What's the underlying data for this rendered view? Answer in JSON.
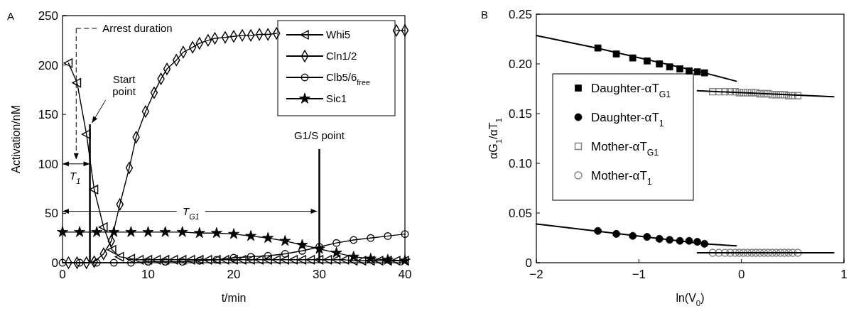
{
  "chart_data": [
    {
      "type": "line",
      "xlabel": "t/min",
      "ylabel": "Activation/nM",
      "xlim": [
        0,
        40
      ],
      "ylim": [
        0,
        250
      ],
      "xticks": [
        0,
        10,
        20,
        30,
        40
      ],
      "yticks": [
        0,
        50,
        100,
        150,
        200,
        250
      ],
      "legend": "top right",
      "annotations": [
        "A",
        "Arrest duration",
        "T$_{1}$",
        "T$_{G1}$"
      ],
      "ref_lines": [
        {
          "axis": "x",
          "value": 3.2,
          "label": "Start point",
          "color": "#000000"
        },
        {
          "axis": "x",
          "value": 30,
          "label": "G1/S point",
          "color": "#000000"
        }
      ],
      "series": [
        {
          "name": "Whi5",
          "color": "#000000",
          "marker": "triangle",
          "x": [
            0.7,
            1.7,
            2.8,
            3.7,
            4.8,
            5.8,
            6.7,
            8,
            9,
            10,
            11,
            12,
            13,
            14,
            15,
            16,
            17,
            18,
            19,
            20,
            21,
            22,
            23,
            24,
            25,
            26,
            27,
            28,
            29,
            30,
            31,
            32,
            33,
            34,
            35,
            36,
            37,
            38,
            39,
            40
          ],
          "values": [
            202,
            182,
            130,
            74,
            36,
            13,
            6,
            4,
            3,
            3,
            3,
            3,
            3,
            3,
            3,
            3,
            3,
            3,
            3,
            3,
            3,
            3,
            3,
            3,
            3,
            3,
            3,
            3,
            3,
            3,
            3,
            3,
            3,
            2,
            2,
            2,
            2,
            2,
            2,
            2
          ]
        },
        {
          "name": "Cln1/2",
          "color": "#000000",
          "marker": "diamond",
          "x": [
            0.7,
            1.7,
            2.8,
            3.7,
            4.8,
            5.7,
            6.7,
            7.8,
            8.6,
            9.7,
            10.7,
            11.5,
            12.2,
            13.3,
            14.1,
            15.2,
            16,
            17,
            17.8,
            19,
            20,
            21,
            22,
            23,
            24,
            25,
            26,
            27,
            28,
            29,
            30,
            31,
            32,
            33,
            34,
            35,
            36,
            37,
            38,
            39,
            40
          ],
          "values": [
            0,
            0,
            0,
            1,
            9,
            22,
            59,
            96,
            127,
            153,
            172,
            186,
            196,
            205,
            213,
            218,
            222,
            225,
            227,
            228,
            229,
            230,
            230,
            231,
            231,
            232,
            null,
            null,
            null,
            null,
            null,
            null,
            null,
            null,
            null,
            null,
            null,
            null,
            null,
            235,
            235
          ]
        },
        {
          "name": "Clb5/6$_{free}$",
          "color": "#000000",
          "marker": "circle",
          "x": [
            0,
            2,
            4,
            6,
            8,
            10,
            12,
            14,
            16,
            18,
            20,
            22,
            24,
            26,
            28,
            30,
            32,
            34,
            36,
            38,
            40
          ],
          "values": [
            0,
            0,
            0,
            0,
            0,
            1,
            1,
            1,
            2,
            3,
            5,
            6,
            7,
            9,
            12,
            16,
            20,
            23,
            25,
            27,
            29
          ]
        },
        {
          "name": "Sic1",
          "color": "#000000",
          "marker": "star",
          "x": [
            0,
            2,
            4,
            6,
            8,
            10,
            12,
            14,
            16,
            18,
            20,
            22,
            24,
            26,
            28,
            30,
            32,
            34,
            36,
            38,
            40
          ],
          "values": [
            31,
            31,
            31,
            31,
            31,
            31,
            31,
            31,
            30,
            30,
            29,
            27,
            25,
            22,
            18,
            14,
            10,
            6,
            4,
            3,
            2
          ]
        }
      ]
    },
    {
      "type": "scatter",
      "xlabel": "ln(V$_{0}$)",
      "ylabel": "αG$_{1}$/αT$_{1}$",
      "xlim": [
        -2,
        1
      ],
      "ylim": [
        0,
        0.25
      ],
      "xticks": [
        {
          "value": -2,
          "label": "−2"
        },
        {
          "value": -1,
          "label": "−1"
        },
        0,
        1
      ],
      "yticks": [
        0,
        0.05,
        {
          "value": 0.1,
          "label": "0.10"
        },
        0.15,
        {
          "value": 0.2,
          "label": "0.20"
        },
        0.25
      ],
      "legend": "left",
      "annotations": [
        "B"
      ],
      "series": [
        {
          "name": "Daughter-αT$_{G1}$",
          "color": "#000000",
          "marker": "square",
          "x": [
            -1.4,
            -1.22,
            -1.06,
            -0.92,
            -0.8,
            -0.7,
            -0.6,
            -0.51,
            -0.43,
            -0.36
          ],
          "values": [
            0.216,
            0.21,
            0.206,
            0.203,
            0.2,
            0.197,
            0.195,
            0.193,
            0.192,
            0.191
          ]
        },
        {
          "name": "Daughter-αT$_{1}$",
          "color": "#000000",
          "marker": "circle",
          "x": [
            -1.4,
            -1.22,
            -1.06,
            -0.92,
            -0.8,
            -0.7,
            -0.6,
            -0.51,
            -0.43,
            -0.36
          ],
          "values": [
            0.032,
            0.029,
            0.027,
            0.026,
            0.024,
            0.023,
            0.022,
            0.022,
            0.021,
            0.019
          ]
        },
        {
          "name": "Mother-αT$_{G1}$",
          "color": "#808080",
          "marker": "square",
          "x": [
            -0.28,
            -0.22,
            -0.16,
            -0.11,
            -0.06,
            -0.02,
            0.02,
            0.06,
            0.1,
            0.14,
            0.18,
            0.22,
            0.26,
            0.3,
            0.34,
            0.38,
            0.42,
            0.46,
            0.5,
            0.55
          ],
          "values": [
            0.172,
            0.172,
            0.172,
            0.172,
            0.172,
            0.171,
            0.171,
            0.171,
            0.171,
            0.171,
            0.17,
            0.17,
            0.17,
            0.169,
            0.169,
            0.169,
            0.169,
            0.168,
            0.168,
            0.168
          ]
        },
        {
          "name": "Mother-αT$_{1}$",
          "color": "#808080",
          "marker": "circle",
          "x": [
            -0.28,
            -0.22,
            -0.16,
            -0.11,
            -0.06,
            -0.02,
            0.02,
            0.06,
            0.1,
            0.14,
            0.18,
            0.22,
            0.26,
            0.3,
            0.34,
            0.38,
            0.42,
            0.46,
            0.5,
            0.55
          ],
          "values": [
            0.01,
            0.01,
            0.01,
            0.01,
            0.01,
            0.01,
            0.01,
            0.01,
            0.01,
            0.01,
            0.01,
            0.01,
            0.01,
            0.01,
            0.01,
            0.01,
            0.01,
            0.01,
            0.01,
            0.01
          ]
        },
        {
          "type": "line",
          "color": "#000000",
          "marker": "none",
          "x": [
            -2,
            -1.4,
            -0.36,
            -0.05
          ],
          "values": [
            0.2285,
            0.2157,
            0.191,
            0.1826
          ]
        },
        {
          "type": "line",
          "color": "#000000",
          "marker": "none",
          "x": [
            -0.43,
            0.9
          ],
          "values": [
            0.173,
            0.167
          ]
        },
        {
          "type": "line",
          "color": "#000000",
          "marker": "none",
          "x": [
            -2,
            -0.36,
            -0.05
          ],
          "values": [
            0.039,
            0.019,
            0.017
          ]
        },
        {
          "type": "line",
          "color": "#000000",
          "marker": "none",
          "x": [
            -0.43,
            0.9
          ],
          "values": [
            0.01,
            0.01
          ]
        }
      ]
    }
  ]
}
